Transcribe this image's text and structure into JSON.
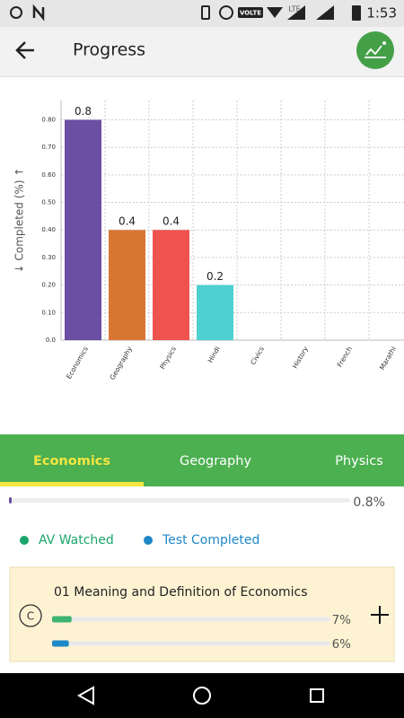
{
  "status_bar": {
    "network": "VOLTE",
    "signal": "LTE",
    "time": "1:53"
  },
  "header": {
    "title": "Progress"
  },
  "chart_data": {
    "type": "bar",
    "y_label": "↓ Completed (%) ↑",
    "categories": [
      "Economics",
      "Geography",
      "Physics",
      "Hindi",
      "Civics",
      "History",
      "French",
      "Marathi"
    ],
    "values": [
      0.8,
      0.4,
      0.4,
      0.2,
      null,
      null,
      null,
      null
    ],
    "colors": [
      "#6a4fa3",
      "#d97634",
      "#ef5350",
      "#4dd0cf",
      null,
      null,
      null,
      null
    ],
    "ylim": [
      0,
      0.87
    ],
    "yticks": [
      {
        "value": 0,
        "label": "0.0"
      },
      {
        "value": 0.1,
        "label": "0.10"
      },
      {
        "value": 0.2,
        "label": "0.20"
      },
      {
        "value": 0.3,
        "label": "0.30"
      },
      {
        "value": 0.4,
        "label": "0.40"
      },
      {
        "value": 0.5,
        "label": "0.50"
      },
      {
        "value": 0.6,
        "label": "0.60"
      },
      {
        "value": 0.7,
        "label": "0.70"
      },
      {
        "value": 0.8,
        "label": "0.80"
      }
    ],
    "grid": true
  },
  "tabs": {
    "items": [
      "Economics",
      "Geography",
      "Physics"
    ],
    "selected": 0
  },
  "overall_progress": {
    "value": 0.8,
    "label": "0.8%",
    "color": "#6a4fa3"
  },
  "legend": [
    {
      "name": "AV Watched",
      "color": "#1aa56b"
    },
    {
      "name": "Test Completed",
      "color": "#1e88c7"
    }
  ],
  "topics": [
    {
      "icon": "C",
      "title": "01 Meaning and Definition of Economics",
      "progress": [
        {
          "value": 7,
          "label": "7%",
          "color": "#3cb371"
        },
        {
          "value": 6,
          "label": "6%",
          "color": "#1e88c7"
        }
      ]
    }
  ]
}
